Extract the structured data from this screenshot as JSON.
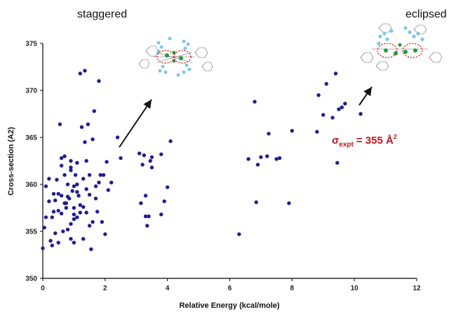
{
  "chart_data": {
    "type": "scatter",
    "title": "",
    "xlabel": "Relative Energy (kcal/mole)",
    "ylabel": "Cross-section (A2)",
    "xlim": [
      0,
      12
    ],
    "ylim": [
      350,
      375
    ],
    "xticks": [
      0,
      2,
      4,
      6,
      8,
      10,
      12
    ],
    "yticks": [
      350,
      355,
      360,
      365,
      370,
      375
    ],
    "grid": false,
    "marker_color": "#1f1f8f",
    "annotations": {
      "staggered": "staggered",
      "eclipsed": "eclipsed",
      "sigma_symbol": "σ",
      "sigma_sub": "expt",
      "sigma_value": "= 355 Å",
      "sigma_sup": "2",
      "sigma_color": "#c0161c"
    },
    "series": [
      {
        "x": [
          0.0,
          0.05,
          0.1,
          0.1,
          0.2,
          0.25,
          0.3,
          0.35,
          0.35,
          0.4,
          0.45,
          0.5,
          0.5,
          0.55,
          0.6,
          0.6,
          0.6,
          0.65,
          0.7,
          0.7,
          0.75,
          0.8,
          0.85,
          0.9,
          0.9,
          0.95,
          1.0,
          1.0,
          1.0,
          1.05,
          1.1,
          1.1,
          1.15,
          1.2,
          1.2,
          1.25,
          1.3,
          1.3,
          1.35,
          1.4,
          1.4,
          1.45,
          1.5,
          1.5,
          1.55,
          1.6,
          1.65,
          1.7,
          1.75,
          1.8,
          1.85,
          1.9,
          1.95,
          2.0,
          2.05,
          2.1,
          2.2,
          0.8,
          0.9,
          1.0,
          1.1,
          0.3,
          0.5,
          0.7,
          1.2,
          1.4,
          1.6,
          1.8,
          0.9,
          1.3,
          0.6,
          1.5,
          0.4,
          1.0,
          0.2,
          0.8,
          1.1,
          0.9,
          0.75,
          1.7,
          1.35
        ],
        "y": [
          353.2,
          355.4,
          359.8,
          356.5,
          358.2,
          354.0,
          353.5,
          357.1,
          359.0,
          354.8,
          360.5,
          357.2,
          353.8,
          366.4,
          362.0,
          358.8,
          356.9,
          355.0,
          363.0,
          361.0,
          357.5,
          360.0,
          358.5,
          361.8,
          362.5,
          359.3,
          356.8,
          359.8,
          353.8,
          361.0,
          362.3,
          356.5,
          358.8,
          371.8,
          357.8,
          366.1,
          360.6,
          354.2,
          372.1,
          362.5,
          357.0,
          366.4,
          358.9,
          361.0,
          353.1,
          364.8,
          367.8,
          358.5,
          357.1,
          371.0,
          361.0,
          356.0,
          361.0,
          354.7,
          362.4,
          359.4,
          360.2,
          358.7,
          355.8,
          357.5,
          360.0,
          356.5,
          359.0,
          358.0,
          357.0,
          359.5,
          356.0,
          360.2,
          354.2,
          357.6,
          362.8,
          355.6,
          358.3,
          356.3,
          360.6,
          355.2,
          359.2,
          361.5,
          358.0,
          359.8,
          364.5
        ]
      },
      {
        "x": [
          2.4,
          2.5,
          3.1,
          3.15,
          3.2,
          3.3,
          3.3,
          3.35,
          3.4,
          3.5,
          3.5,
          3.8,
          3.8,
          3.9,
          4.0,
          4.1,
          3.25,
          3.45
        ],
        "y": [
          365.0,
          362.8,
          363.3,
          358.0,
          362.1,
          356.6,
          358.8,
          355.6,
          356.6,
          362.9,
          361.8,
          363.2,
          356.8,
          358.2,
          359.7,
          364.6,
          363.1,
          362.5
        ]
      },
      {
        "x": [
          6.3,
          6.6,
          6.8,
          6.85,
          6.9,
          7.0,
          7.2,
          7.25,
          7.5,
          7.6,
          7.9,
          8.0
        ],
        "y": [
          354.7,
          362.7,
          368.8,
          358.1,
          362.1,
          362.9,
          363.0,
          365.4,
          362.7,
          362.8,
          358.0,
          365.7
        ]
      },
      {
        "x": [
          8.8,
          8.85,
          9.0,
          9.1,
          9.3,
          9.4,
          9.45,
          9.5,
          9.6,
          9.7,
          10.2
        ],
        "y": [
          365.6,
          369.5,
          367.4,
          370.7,
          367.1,
          371.8,
          362.3,
          368.0,
          368.2,
          368.6,
          367.5
        ]
      }
    ]
  }
}
